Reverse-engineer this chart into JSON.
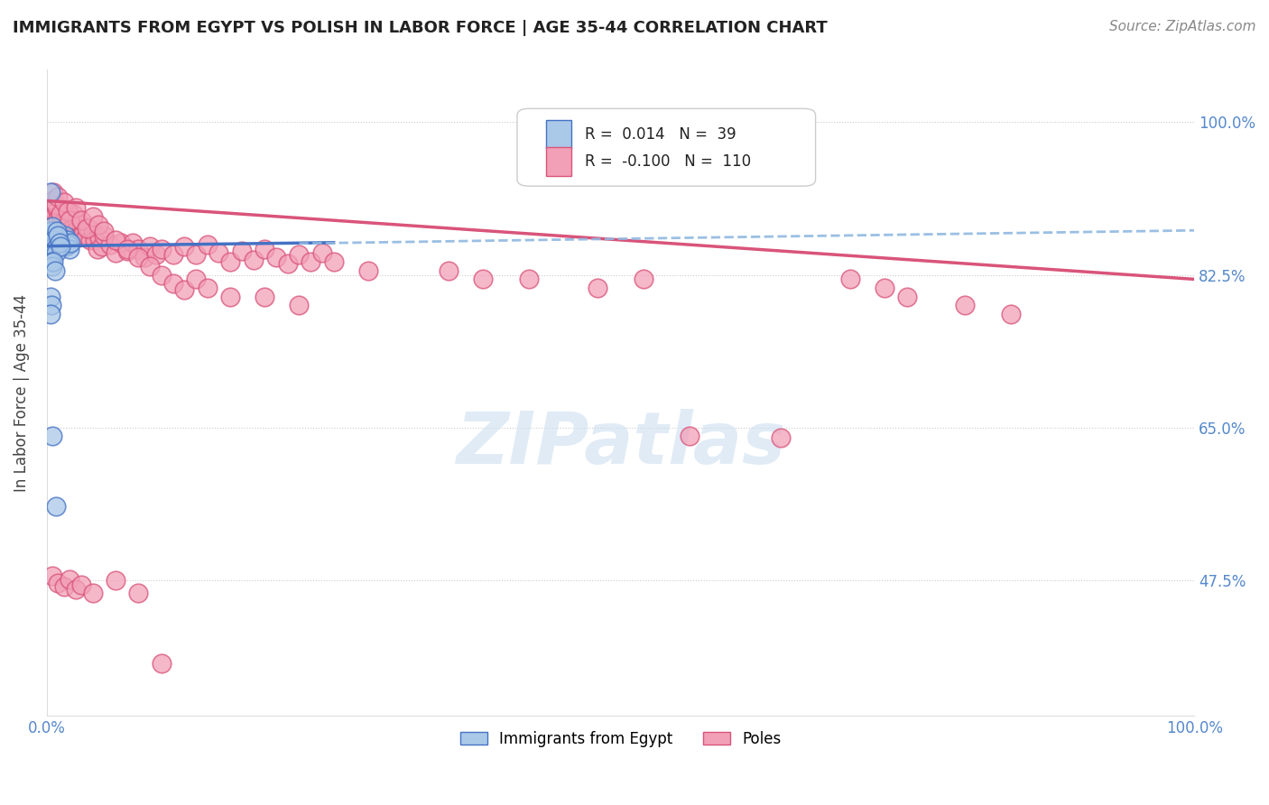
{
  "title": "IMMIGRANTS FROM EGYPT VS POLISH IN LABOR FORCE | AGE 35-44 CORRELATION CHART",
  "source": "Source: ZipAtlas.com",
  "ylabel": "In Labor Force | Age 35-44",
  "xlim": [
    0.0,
    1.0
  ],
  "ylim": [
    0.32,
    1.06
  ],
  "yticks": [
    0.475,
    0.65,
    0.825,
    1.0
  ],
  "ytick_labels": [
    "47.5%",
    "65.0%",
    "82.5%",
    "100.0%"
  ],
  "legend_r_egypt": "0.014",
  "legend_n_egypt": "39",
  "legend_r_poles": "-0.100",
  "legend_n_poles": "110",
  "egypt_fill": "#aac8e8",
  "egypt_edge": "#4472c4",
  "poles_fill": "#f2a0b8",
  "poles_edge": "#d9547a",
  "egypt_line_color": "#4472c4",
  "poles_line_color": "#d9547a",
  "dashed_line_color": "#90b8e0",
  "watermark_color": "#ccdff0",
  "grid_color": "#cccccc",
  "tick_color": "#5588cc",
  "title_color": "#222222",
  "source_color": "#888888",
  "egypt_x": [
    0.002,
    0.003,
    0.004,
    0.005,
    0.006,
    0.007,
    0.008,
    0.009,
    0.01,
    0.011,
    0.012,
    0.013,
    0.014,
    0.015,
    0.016,
    0.017,
    0.018,
    0.019,
    0.02,
    0.021,
    0.003,
    0.004,
    0.005,
    0.006,
    0.007,
    0.008,
    0.009,
    0.01,
    0.011,
    0.012,
    0.004,
    0.005,
    0.006,
    0.007,
    0.003,
    0.004,
    0.005,
    0.008,
    0.003
  ],
  "egypt_y": [
    0.87,
    0.875,
    0.868,
    0.865,
    0.872,
    0.86,
    0.868,
    0.862,
    0.858,
    0.865,
    0.862,
    0.858,
    0.865,
    0.862,
    0.87,
    0.858,
    0.865,
    0.86,
    0.855,
    0.862,
    0.92,
    0.875,
    0.88,
    0.865,
    0.855,
    0.85,
    0.875,
    0.87,
    0.862,
    0.858,
    0.84,
    0.835,
    0.84,
    0.83,
    0.8,
    0.79,
    0.64,
    0.56,
    0.78
  ],
  "poles_x": [
    0.002,
    0.004,
    0.005,
    0.006,
    0.007,
    0.008,
    0.009,
    0.01,
    0.011,
    0.012,
    0.013,
    0.014,
    0.015,
    0.016,
    0.017,
    0.018,
    0.019,
    0.02,
    0.021,
    0.022,
    0.023,
    0.024,
    0.025,
    0.026,
    0.027,
    0.028,
    0.03,
    0.032,
    0.034,
    0.036,
    0.038,
    0.04,
    0.042,
    0.044,
    0.046,
    0.048,
    0.05,
    0.055,
    0.06,
    0.065,
    0.07,
    0.075,
    0.08,
    0.085,
    0.09,
    0.095,
    0.1,
    0.11,
    0.12,
    0.13,
    0.14,
    0.15,
    0.16,
    0.17,
    0.18,
    0.19,
    0.2,
    0.21,
    0.22,
    0.23,
    0.24,
    0.25,
    0.006,
    0.008,
    0.01,
    0.012,
    0.015,
    0.018,
    0.02,
    0.025,
    0.03,
    0.035,
    0.04,
    0.045,
    0.05,
    0.06,
    0.07,
    0.08,
    0.09,
    0.1,
    0.11,
    0.12,
    0.13,
    0.14,
    0.16,
    0.19,
    0.22,
    0.28,
    0.35,
    0.38,
    0.42,
    0.48,
    0.52,
    0.56,
    0.64,
    0.7,
    0.73,
    0.75,
    0.8,
    0.84,
    0.005,
    0.01,
    0.015,
    0.02,
    0.025,
    0.03,
    0.04,
    0.06,
    0.08,
    0.1
  ],
  "poles_y": [
    0.89,
    0.9,
    0.88,
    0.92,
    0.895,
    0.875,
    0.9,
    0.89,
    0.88,
    0.895,
    0.885,
    0.875,
    0.9,
    0.888,
    0.878,
    0.892,
    0.882,
    0.872,
    0.886,
    0.876,
    0.895,
    0.885,
    0.875,
    0.888,
    0.878,
    0.868,
    0.882,
    0.872,
    0.868,
    0.878,
    0.865,
    0.875,
    0.865,
    0.855,
    0.868,
    0.858,
    0.87,
    0.86,
    0.85,
    0.862,
    0.852,
    0.862,
    0.855,
    0.845,
    0.858,
    0.848,
    0.855,
    0.848,
    0.858,
    0.848,
    0.86,
    0.85,
    0.84,
    0.852,
    0.842,
    0.855,
    0.845,
    0.838,
    0.848,
    0.84,
    0.85,
    0.84,
    0.91,
    0.905,
    0.915,
    0.895,
    0.908,
    0.898,
    0.888,
    0.902,
    0.888,
    0.878,
    0.892,
    0.882,
    0.875,
    0.865,
    0.855,
    0.845,
    0.835,
    0.825,
    0.815,
    0.808,
    0.82,
    0.81,
    0.8,
    0.8,
    0.79,
    0.83,
    0.83,
    0.82,
    0.82,
    0.81,
    0.82,
    0.64,
    0.638,
    0.82,
    0.81,
    0.8,
    0.79,
    0.78,
    0.48,
    0.472,
    0.468,
    0.476,
    0.465,
    0.47,
    0.46,
    0.475,
    0.46,
    0.38
  ]
}
